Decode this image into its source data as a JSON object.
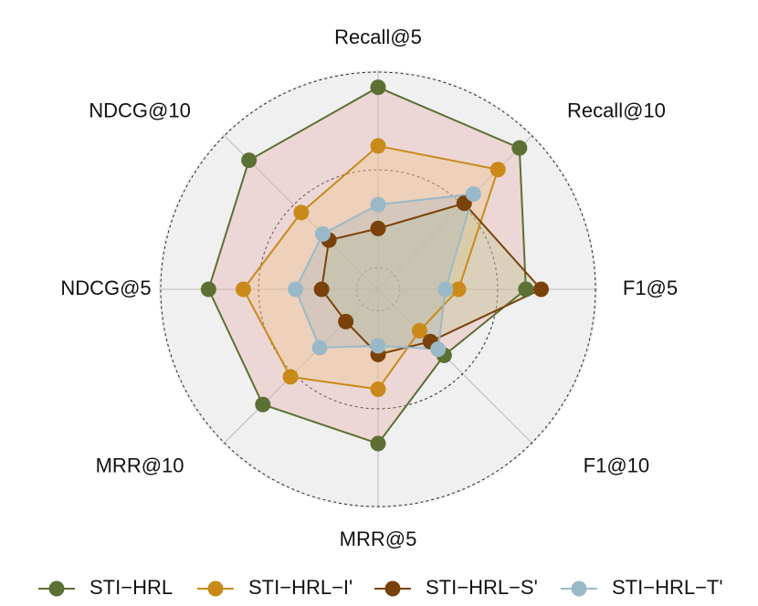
{
  "chart_data": {
    "type": "radar",
    "categories": [
      "Recall@5",
      "Recall@10",
      "F1@5",
      "F1@10",
      "MRR@5",
      "MRR@10",
      "NDCG@5",
      "NDCG@10"
    ],
    "rlim": [
      0,
      1
    ],
    "rticks": [
      0.1,
      0.55,
      1.0
    ],
    "grid": true,
    "legend": "bottom",
    "series": [
      {
        "name": "STI−HRL",
        "color": "#5b7032",
        "fill": "#e6a9a6",
        "values": [
          0.93,
          0.92,
          0.68,
          0.43,
          0.71,
          0.75,
          0.78,
          0.84
        ]
      },
      {
        "name": "STI−HRL−I'",
        "color": "#c98a1a",
        "fill": "#f2c58a",
        "values": [
          0.66,
          0.78,
          0.37,
          0.27,
          0.46,
          0.57,
          0.62,
          0.5
        ]
      },
      {
        "name": "STI−HRL−S'",
        "color": "#7a420a",
        "fill": "#b9c48a",
        "values": [
          0.28,
          0.56,
          0.75,
          0.34,
          0.3,
          0.21,
          0.26,
          0.32
        ]
      },
      {
        "name": "STI−HRL−T'",
        "color": "#9ab9c8",
        "fill": "#a8b4c0",
        "values": [
          0.39,
          0.62,
          0.31,
          0.39,
          0.26,
          0.38,
          0.38,
          0.36
        ]
      }
    ]
  }
}
